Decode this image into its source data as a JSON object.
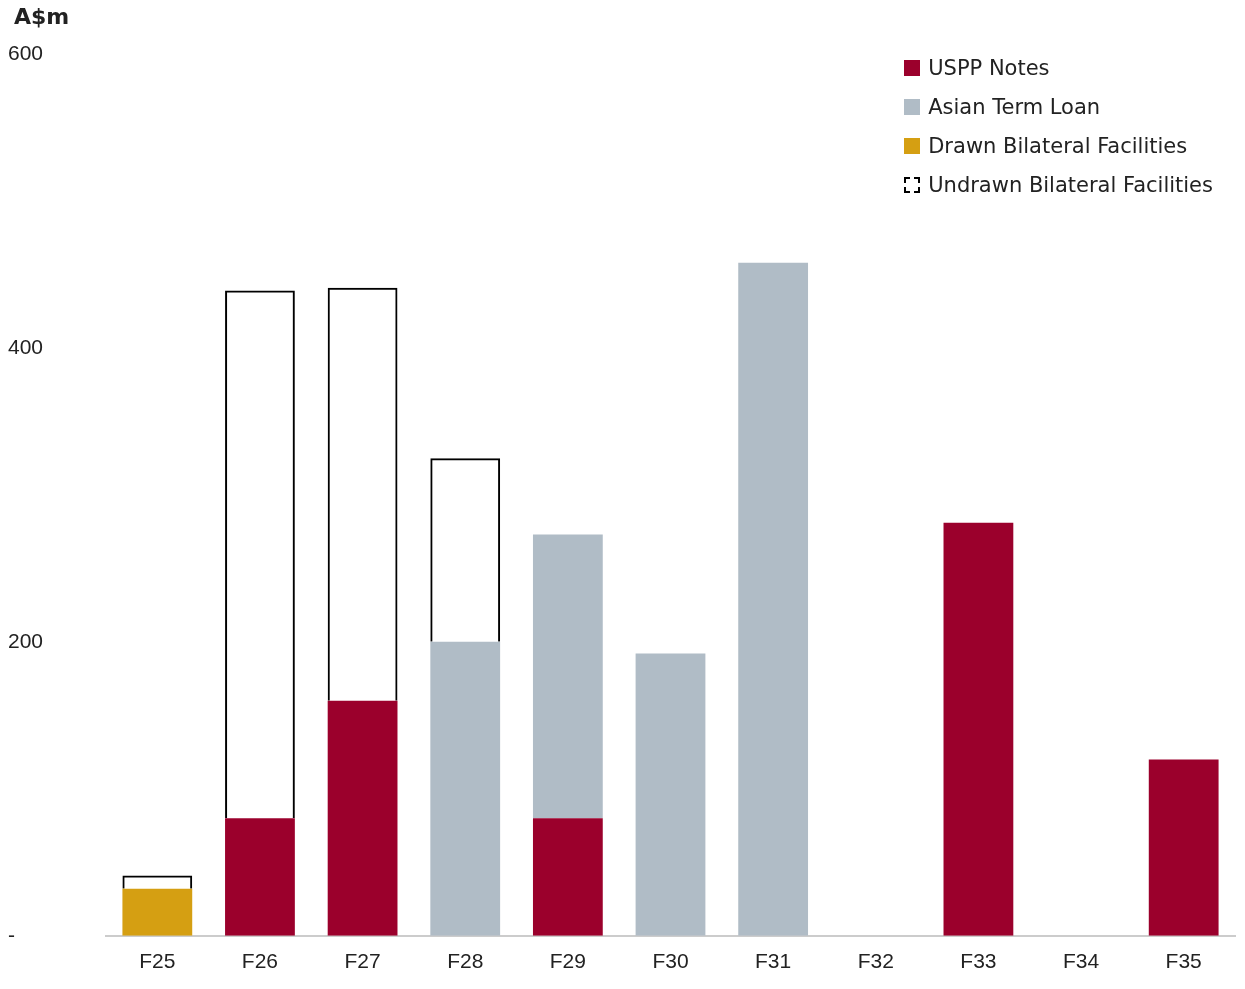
{
  "chart_data": {
    "type": "bar",
    "ylabel": "A$m",
    "categories": [
      "F25",
      "F26",
      "F27",
      "F28",
      "F29",
      "F30",
      "F31",
      "F32",
      "F33",
      "F34",
      "F35"
    ],
    "series": [
      {
        "name": "USPP Notes",
        "color": "#9b002c",
        "values": [
          0,
          80,
          160,
          0,
          80,
          0,
          0,
          0,
          281,
          0,
          120
        ]
      },
      {
        "name": "Asian Term Loan",
        "color": "#b0bcc6",
        "values": [
          0,
          0,
          0,
          200,
          193,
          192,
          458,
          0,
          0,
          0,
          0
        ]
      },
      {
        "name": "Drawn Bilateral Facilities",
        "color": "#d59f12",
        "values": [
          32,
          0,
          0,
          0,
          0,
          0,
          0,
          0,
          0,
          0,
          0
        ]
      },
      {
        "name": "Undrawn Bilateral Facilities",
        "color": "#000000",
        "line_style": "dashed",
        "values": [
          9,
          359,
          281,
          125,
          0,
          0,
          0,
          0,
          0,
          0,
          0
        ]
      }
    ],
    "stacked": true,
    "ylim": [
      0,
      600
    ],
    "yticks": [
      {
        "value": 0,
        "label": "-"
      },
      200,
      400,
      600
    ],
    "grid": false,
    "legend": "top right"
  }
}
